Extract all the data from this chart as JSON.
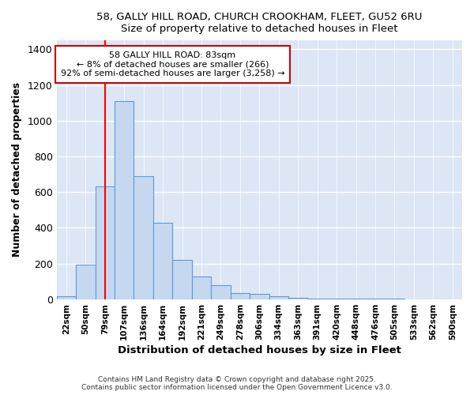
{
  "title_line1": "58, GALLY HILL ROAD, CHURCH CROOKHAM, FLEET, GU52 6RU",
  "title_line2": "Size of property relative to detached houses in Fleet",
  "xlabel": "Distribution of detached houses by size in Fleet",
  "ylabel": "Number of detached properties",
  "bar_color": "#c5d8f0",
  "bar_edge_color": "#5b9bd5",
  "background_color": "#dce6f5",
  "grid_color": "#ffffff",
  "fig_background": "#ffffff",
  "categories": [
    "22sqm",
    "50sqm",
    "79sqm",
    "107sqm",
    "136sqm",
    "164sqm",
    "192sqm",
    "221sqm",
    "249sqm",
    "278sqm",
    "306sqm",
    "334sqm",
    "363sqm",
    "391sqm",
    "420sqm",
    "448sqm",
    "476sqm",
    "505sqm",
    "533sqm",
    "562sqm",
    "590sqm"
  ],
  "values": [
    15,
    195,
    630,
    1110,
    690,
    430,
    220,
    125,
    80,
    35,
    28,
    15,
    8,
    5,
    3,
    2,
    1,
    1,
    0,
    0,
    0
  ],
  "ylim": [
    0,
    1450
  ],
  "yticks": [
    0,
    200,
    400,
    600,
    800,
    1000,
    1200,
    1400
  ],
  "red_line_x": 2.0,
  "annotation_text": "58 GALLY HILL ROAD: 83sqm\n← 8% of detached houses are smaller (266)\n92% of semi-detached houses are larger (3,258) →",
  "annotation_box_color": "#ffffff",
  "annotation_box_edge_color": "#cc0000",
  "footer_line1": "Contains HM Land Registry data © Crown copyright and database right 2025.",
  "footer_line2": "Contains public sector information licensed under the Open Government Licence v3.0."
}
